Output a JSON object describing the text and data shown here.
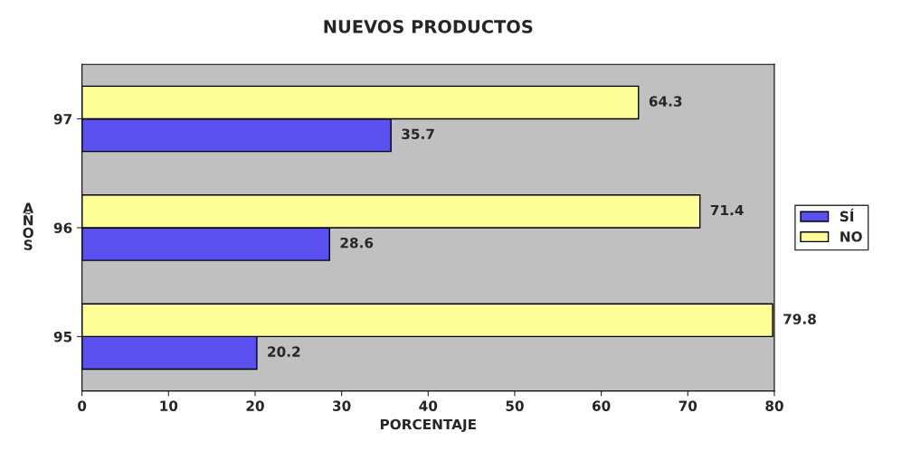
{
  "chart_data": {
    "type": "bar",
    "orientation": "horizontal",
    "title": "NUEVOS PRODUCTOS",
    "xlabel": "PORCENTAJE",
    "ylabel": "AÑOS",
    "categories": [
      "97",
      "96",
      "95"
    ],
    "series": [
      {
        "name": "SÍ",
        "color": "#5a50f0",
        "values": [
          35.7,
          28.6,
          20.2
        ]
      },
      {
        "name": "NO",
        "color": "#ffff99",
        "values": [
          64.3,
          71.4,
          79.8
        ]
      }
    ],
    "xlim": [
      0,
      80
    ],
    "xticks": [
      0,
      10,
      20,
      30,
      40,
      50,
      60,
      70,
      80
    ],
    "data_labels": true,
    "legend": "right",
    "grid": false
  }
}
